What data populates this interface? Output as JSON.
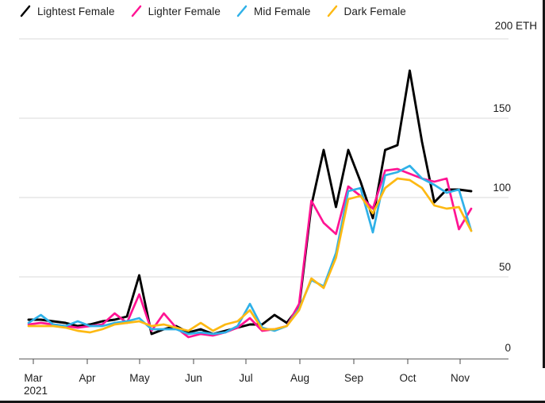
{
  "chart_data": {
    "type": "line",
    "title": "",
    "unit": "ETH",
    "unit_axis_label": "200 ETH",
    "x": [
      "Mar 1",
      "Mar 8",
      "Mar 15",
      "Mar 22",
      "Mar 29",
      "Apr 5",
      "Apr 12",
      "Apr 19",
      "Apr 26",
      "May 3",
      "May 10",
      "May 17",
      "May 24",
      "May 31",
      "Jun 7",
      "Jun 14",
      "Jun 21",
      "Jun 28",
      "Jul 5",
      "Jul 12",
      "Jul 19",
      "Jul 26",
      "Aug 2",
      "Aug 9",
      "Aug 16",
      "Aug 23",
      "Aug 30",
      "Sep 6",
      "Sep 13",
      "Sep 20",
      "Sep 27",
      "Oct 4",
      "Oct 11",
      "Oct 18",
      "Oct 25",
      "Nov 1",
      "Nov 8"
    ],
    "x_tick_labels": [
      "Mar",
      "Apr",
      "May",
      "Jun",
      "Jul",
      "Aug",
      "Sep",
      "Oct",
      "Nov"
    ],
    "x_axis_year": "2021",
    "y_ticks": [
      0,
      50,
      100,
      150,
      200
    ],
    "y_tick_labels": [
      "0",
      "50",
      "100",
      "150",
      "200 ETH"
    ],
    "ylim": [
      0,
      200
    ],
    "grid": "horizontal",
    "legend_position": "top-left",
    "axis_color": "#757575",
    "grid_color": "#d9d9d9",
    "series": [
      {
        "name": "Lightest Female",
        "color": "#000000",
        "values": [
          23,
          23,
          22,
          21,
          19,
          20,
          22,
          23,
          25,
          51,
          14,
          17,
          19,
          15,
          17,
          14,
          16,
          18,
          20,
          20,
          26,
          21,
          31,
          95,
          130,
          94,
          130,
          110,
          87,
          130,
          133,
          180,
          135,
          97,
          105,
          105,
          104
        ]
      },
      {
        "name": "Lighter Female",
        "color": "#ff1493",
        "values": [
          20,
          21,
          20,
          19,
          18,
          19,
          20,
          27,
          21,
          39,
          16,
          27,
          18,
          12,
          14,
          13,
          15,
          18,
          24,
          16,
          17,
          19,
          33,
          98,
          84,
          77,
          107,
          101,
          93,
          117,
          118,
          115,
          112,
          110,
          112,
          80,
          93
        ]
      },
      {
        "name": "Mid Female",
        "color": "#2fb1e8",
        "values": [
          21,
          26,
          20,
          19,
          22,
          19,
          19,
          21,
          22,
          24,
          17,
          17,
          17,
          14,
          15,
          14,
          15,
          19,
          33,
          18,
          16,
          19,
          30,
          48,
          44,
          65,
          104,
          106,
          78,
          114,
          116,
          120,
          112,
          108,
          103,
          105,
          79
        ]
      },
      {
        "name": "Dark Female",
        "color": "#fdb913",
        "values": [
          19,
          19,
          19,
          18,
          16,
          15,
          17,
          20,
          21,
          22,
          19,
          20,
          18,
          16,
          21,
          16,
          20,
          22,
          29,
          17,
          17,
          19,
          29,
          49,
          43,
          62,
          99,
          101,
          90,
          106,
          112,
          111,
          106,
          95,
          93,
          94,
          79
        ]
      }
    ]
  }
}
